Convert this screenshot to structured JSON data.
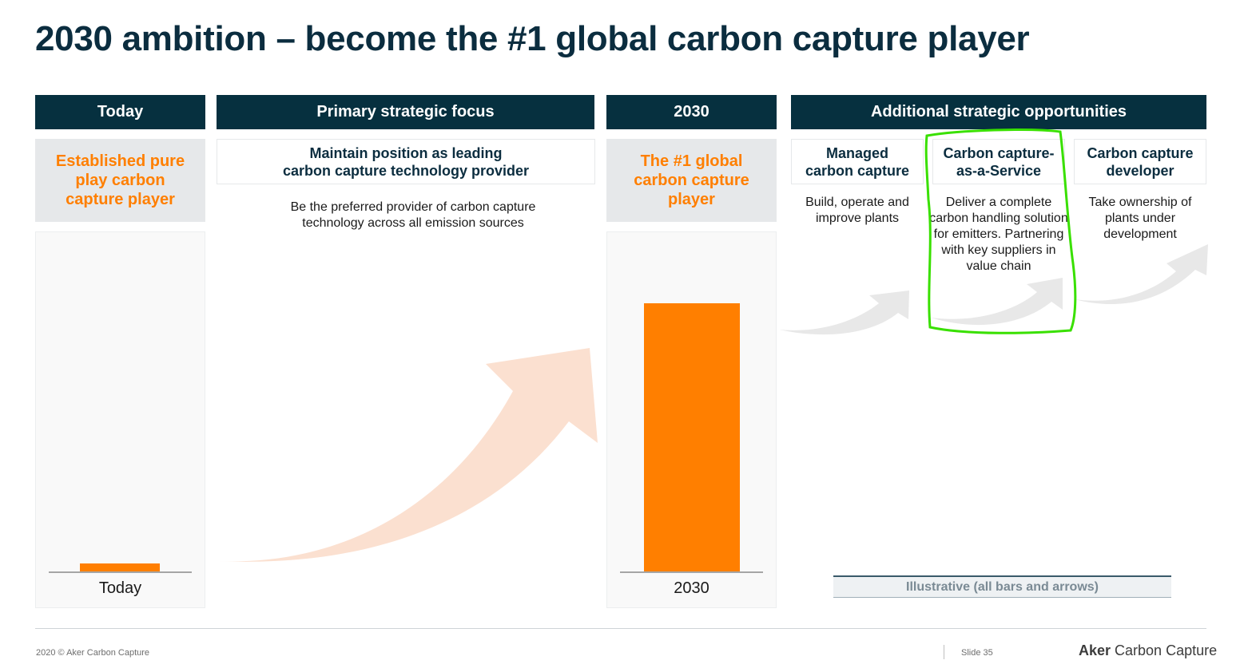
{
  "title": "2030 ambition – become the #1 global carbon capture player",
  "headers": {
    "today": "Today",
    "primary": "Primary strategic focus",
    "y2030": "2030",
    "additional": "Additional strategic opportunities"
  },
  "today_box": "Established pure\nplay carbon\ncapture player",
  "primary_box": "Maintain position as leading\ncarbon capture technology provider",
  "primary_desc": "Be the preferred provider of carbon capture\ntechnology across all emission sources",
  "y2030_box": "The #1 global\ncarbon capture\nplayer",
  "opportunities": [
    {
      "title": "Managed\ncarbon capture",
      "desc": "Build, operate and\nimprove plants"
    },
    {
      "title": "Carbon capture-\nas-a-Service",
      "desc": "Deliver a complete\ncarbon handling solution\nfor emitters. Partnering\nwith key suppliers in\nvalue chain"
    },
    {
      "title": "Carbon capture\ndeveloper",
      "desc": "Take ownership of\nplants under\ndevelopment"
    }
  ],
  "chart_data": {
    "type": "bar",
    "categories": [
      "Today",
      "2030"
    ],
    "values": [
      3,
      100
    ],
    "title": "",
    "xlabel": "",
    "ylabel": "",
    "ylim": [
      0,
      110
    ],
    "colors": [
      "#ff7f00",
      "#ff7f00"
    ]
  },
  "illustrative_note": "Illustrative (all bars and arrows)",
  "footer": {
    "copyright": "2020 © Aker Carbon Capture",
    "slide": "Slide 35",
    "logo_bold": "Aker",
    "logo_rest": " Carbon Capture"
  },
  "colors": {
    "navy": "#06303f",
    "orange": "#ff7f00",
    "grey_box": "#e6e8ea",
    "highlight_green": "#39e000"
  },
  "icons": [
    "growth-arrow-orange",
    "growth-arrow-grey"
  ]
}
